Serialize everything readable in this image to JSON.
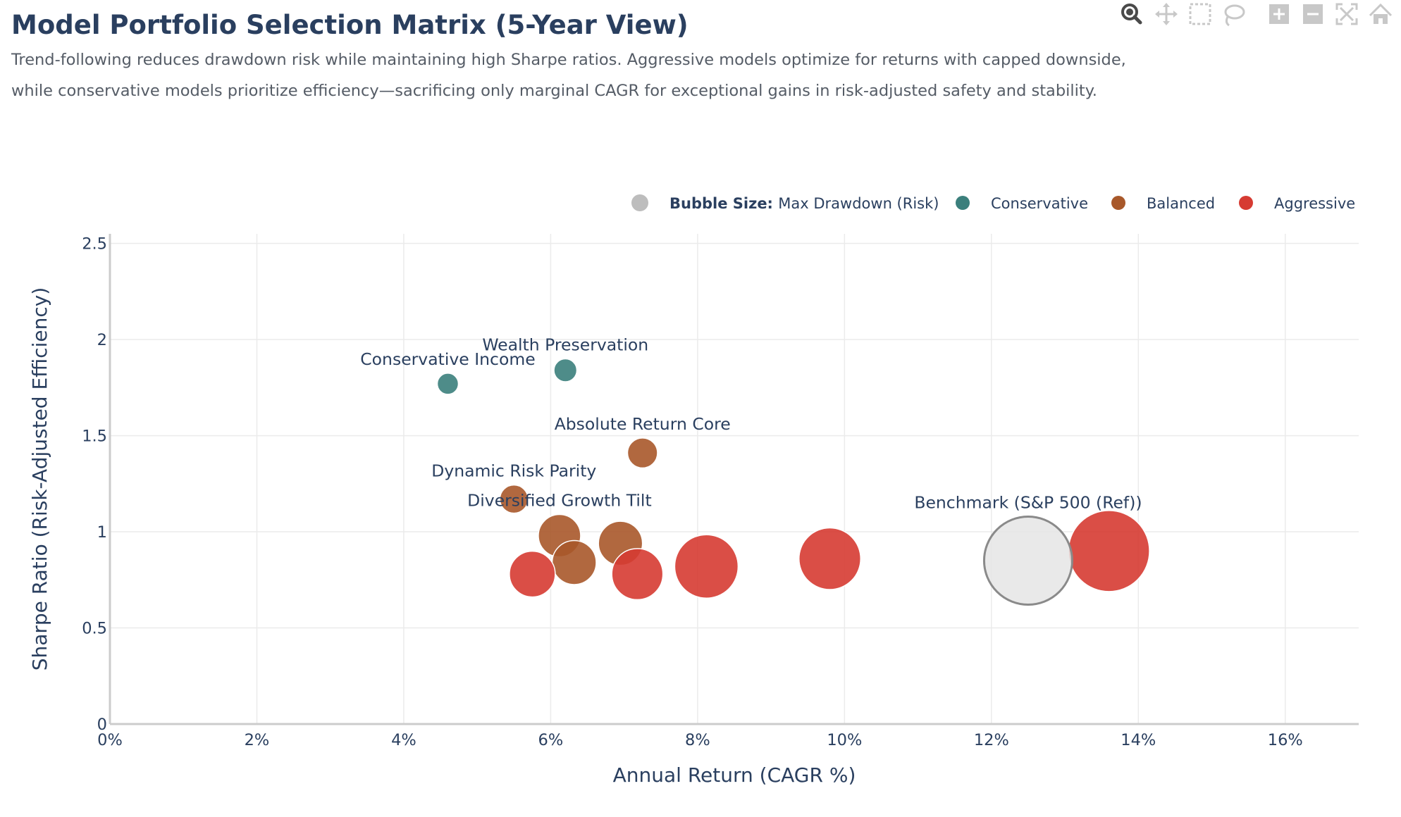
{
  "header": {
    "title": "Model Portfolio Selection Matrix (5-Year View)",
    "subtitle_line1": "Trend-following reduces drawdown risk while maintaining high Sharpe ratios. Aggressive models optimize for returns with capped downside,",
    "subtitle_line2": "while conservative models prioritize efficiency—sacrificing only marginal CAGR for exceptional gains in risk-adjusted safety and stability."
  },
  "modebar": {
    "icons": [
      "zoom-icon",
      "pan-icon",
      "box-select-icon",
      "lasso-select-icon",
      "zoom-in-icon",
      "zoom-out-icon",
      "autoscale-icon",
      "reset-axes-icon"
    ],
    "active": "zoom-icon"
  },
  "legend": {
    "size_label_bold": "Bubble Size:",
    "size_label": "Max Drawdown (Risk)",
    "items": [
      {
        "name": "Conservative",
        "color": "#3b7f7c"
      },
      {
        "name": "Balanced",
        "color": "#a8582a"
      },
      {
        "name": "Aggressive",
        "color": "#d63b32"
      }
    ],
    "size_swatch_color": "#bdbdbd",
    "placement": "top-right"
  },
  "colors": {
    "conservative": "#3b7f7c",
    "balanced": "#a8582a",
    "aggressive": "#d63b32",
    "benchmark_fill": "#e5e5e5",
    "benchmark_stroke": "#8a8a8a",
    "grid": "#ebebeb",
    "axis": "#cccccc"
  },
  "chart_data": {
    "type": "scatter",
    "bubble": true,
    "xlabel": "Annual Return (CAGR %)",
    "ylabel": "Sharpe Ratio (Risk-Adjusted Efficiency)",
    "xlim": [
      0,
      17
    ],
    "ylim": [
      0,
      2.55
    ],
    "x_ticks": [
      0,
      2,
      4,
      6,
      8,
      10,
      12,
      14,
      16
    ],
    "x_tick_labels": [
      "0%",
      "2%",
      "4%",
      "6%",
      "8%",
      "10%",
      "12%",
      "14%",
      "16%"
    ],
    "y_ticks": [
      0,
      0.5,
      1,
      1.5,
      2,
      2.5
    ],
    "y_tick_labels": [
      "0",
      "0.5",
      "1",
      "1.5",
      "2",
      "2.5"
    ],
    "grid": true,
    "points": [
      {
        "category": "Conservative",
        "label": "Conservative Income",
        "x": 4.6,
        "y": 1.77,
        "size": 12
      },
      {
        "category": "Conservative",
        "label": "Wealth Preservation",
        "x": 6.2,
        "y": 1.84,
        "size": 13
      },
      {
        "category": "Balanced",
        "label": "Absolute Return Core",
        "x": 7.25,
        "y": 1.41,
        "size": 17
      },
      {
        "category": "Balanced",
        "label": "Dynamic Risk Parity",
        "x": 5.5,
        "y": 1.17,
        "size": 16
      },
      {
        "category": "Balanced",
        "label": "Diversified Growth Tilt",
        "x": 6.12,
        "y": 0.98,
        "size": 24
      },
      {
        "category": "Balanced",
        "label": "",
        "x": 6.32,
        "y": 0.84,
        "size": 25
      },
      {
        "category": "Balanced",
        "label": "",
        "x": 6.95,
        "y": 0.94,
        "size": 25
      },
      {
        "category": "Aggressive",
        "label": "",
        "x": 5.75,
        "y": 0.78,
        "size": 26
      },
      {
        "category": "Aggressive",
        "label": "",
        "x": 7.18,
        "y": 0.78,
        "size": 29
      },
      {
        "category": "Aggressive",
        "label": "",
        "x": 8.12,
        "y": 0.82,
        "size": 36
      },
      {
        "category": "Aggressive",
        "label": "",
        "x": 9.8,
        "y": 0.86,
        "size": 35
      },
      {
        "category": "Aggressive",
        "label": "",
        "x": 13.6,
        "y": 0.9,
        "size": 46
      },
      {
        "category": "Benchmark",
        "label": "Benchmark (S&P 500 (Ref))",
        "x": 12.5,
        "y": 0.85,
        "size": 50
      }
    ]
  }
}
